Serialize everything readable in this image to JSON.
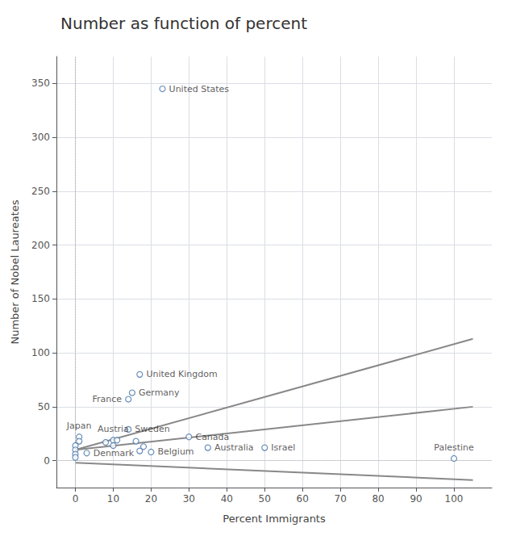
{
  "chart_data": {
    "type": "scatter",
    "title": "Number as function of percent",
    "xlabel": "Percent Immigrants",
    "ylabel": "Number of Nobel Laureates",
    "xlim": [
      -5,
      110
    ],
    "ylim": [
      -25,
      375
    ],
    "xticks": [
      0,
      10,
      20,
      30,
      40,
      50,
      60,
      70,
      80,
      90,
      100
    ],
    "yticks": [
      0,
      50,
      100,
      150,
      200,
      250,
      300,
      350
    ],
    "grid": true,
    "series": [
      {
        "type": "scatter",
        "color": "#4472a8",
        "marker": "circle",
        "x": [
          23,
          17,
          15,
          14,
          14,
          1,
          10,
          3,
          30,
          35,
          50,
          100,
          20,
          0,
          0,
          0,
          0,
          1,
          8,
          10,
          11,
          16,
          17,
          18
        ],
        "values": [
          345,
          80,
          63,
          57,
          29,
          22,
          19,
          7,
          22,
          12,
          12,
          2,
          8,
          14,
          10,
          6,
          3,
          18,
          17,
          14,
          19,
          18,
          9,
          13
        ],
        "labels": [
          "United States",
          "United Kingdom",
          "Germany",
          "France",
          "Sweden",
          "Japan",
          "Austria",
          "Denmark",
          "Canada",
          "Australia",
          "Israel",
          "Palestine",
          "Belgium",
          null,
          null,
          null,
          null,
          null,
          null,
          null,
          null,
          null,
          null,
          null
        ]
      },
      {
        "type": "line",
        "color": "#888888",
        "x": [
          0,
          105
        ],
        "values": [
          10,
          113
        ]
      },
      {
        "type": "line",
        "color": "#888888",
        "x": [
          0,
          105
        ],
        "values": [
          10,
          50
        ]
      },
      {
        "type": "line",
        "color": "#888888",
        "x": [
          0,
          105
        ],
        "values": [
          -2,
          -18
        ]
      }
    ],
    "reference_lines": [
      {
        "x": 0,
        "line_style": "dotted",
        "color": "#aaaaaa"
      },
      {
        "y": 0,
        "line_style": "dotted",
        "color": "#bbbbbb"
      }
    ]
  }
}
